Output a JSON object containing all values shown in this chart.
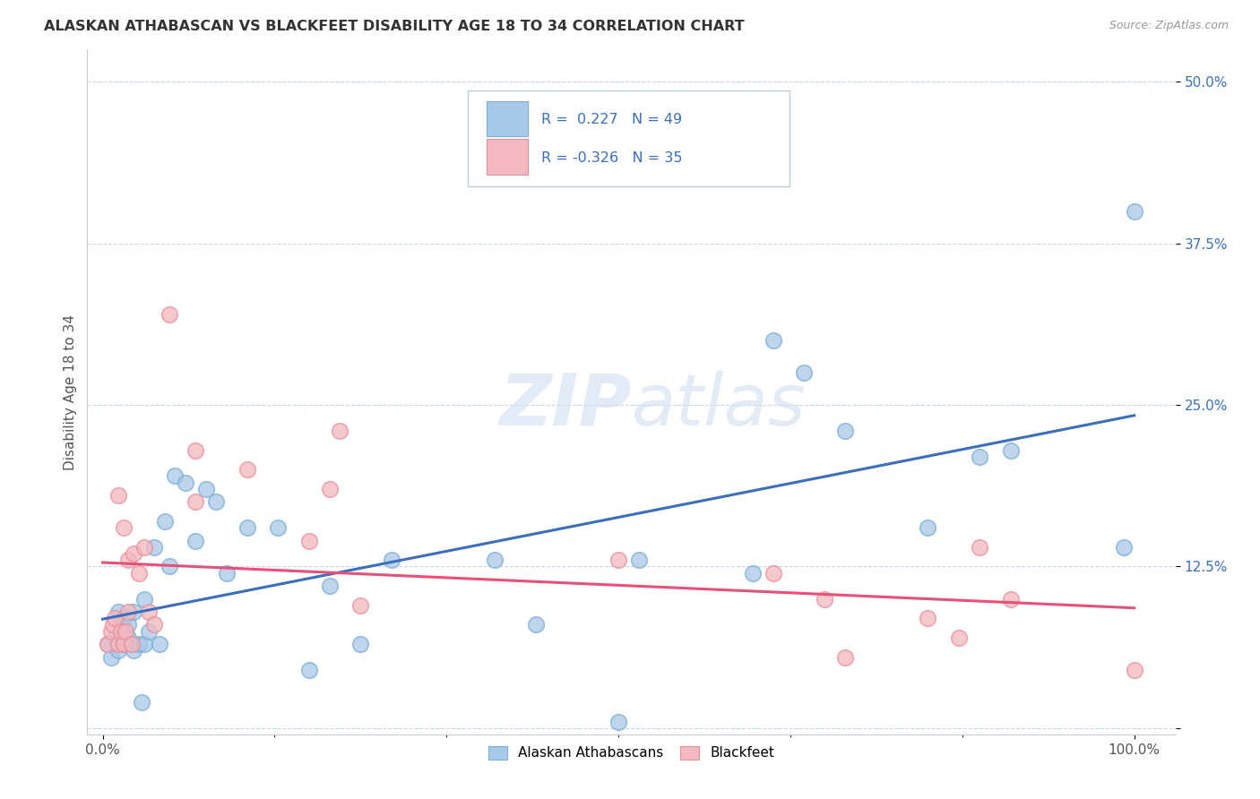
{
  "title": "ALASKAN ATHABASCAN VS BLACKFEET DISABILITY AGE 18 TO 34 CORRELATION CHART",
  "source": "Source: ZipAtlas.com",
  "ylabel": "Disability Age 18 to 34",
  "legend_label1": "Alaskan Athabascans",
  "legend_label2": "Blackfeet",
  "R1": 0.227,
  "N1": 49,
  "R2": -0.326,
  "N2": 35,
  "blue_color": "#a8c8e8",
  "blue_edge_color": "#7aafd4",
  "pink_color": "#f4b8c0",
  "pink_edge_color": "#e8909a",
  "blue_line_color": "#3a6fbe",
  "pink_line_color": "#e8507a",
  "legend_text_color": "#3a6fbe",
  "watermark_color": "#d0dff0",
  "ylabel_ticks": [
    0.0,
    0.125,
    0.25,
    0.375,
    0.5
  ],
  "ylabel_labels": [
    "",
    "12.5%",
    "25.0%",
    "37.5%",
    "50.0%"
  ],
  "blue_x": [
    0.005,
    0.008,
    0.012,
    0.015,
    0.015,
    0.018,
    0.018,
    0.02,
    0.02,
    0.022,
    0.025,
    0.025,
    0.028,
    0.03,
    0.03,
    0.035,
    0.038,
    0.04,
    0.04,
    0.045,
    0.05,
    0.055,
    0.06,
    0.065,
    0.07,
    0.08,
    0.09,
    0.1,
    0.11,
    0.12,
    0.14,
    0.17,
    0.2,
    0.22,
    0.25,
    0.28,
    0.38,
    0.42,
    0.5,
    0.52,
    0.63,
    0.65,
    0.68,
    0.72,
    0.8,
    0.85,
    0.88,
    0.99,
    1.0
  ],
  "blue_y": [
    0.065,
    0.055,
    0.07,
    0.06,
    0.09,
    0.08,
    0.07,
    0.085,
    0.065,
    0.075,
    0.08,
    0.07,
    0.065,
    0.09,
    0.06,
    0.065,
    0.02,
    0.1,
    0.065,
    0.075,
    0.14,
    0.065,
    0.16,
    0.125,
    0.195,
    0.19,
    0.145,
    0.185,
    0.175,
    0.12,
    0.155,
    0.155,
    0.045,
    0.11,
    0.065,
    0.13,
    0.13,
    0.08,
    0.005,
    0.13,
    0.12,
    0.3,
    0.275,
    0.23,
    0.155,
    0.21,
    0.215,
    0.14,
    0.4
  ],
  "pink_x": [
    0.005,
    0.008,
    0.01,
    0.012,
    0.015,
    0.015,
    0.018,
    0.02,
    0.02,
    0.022,
    0.025,
    0.025,
    0.028,
    0.03,
    0.035,
    0.04,
    0.045,
    0.05,
    0.065,
    0.09,
    0.09,
    0.14,
    0.2,
    0.22,
    0.23,
    0.25,
    0.5,
    0.65,
    0.7,
    0.72,
    0.8,
    0.83,
    0.85,
    0.88,
    1.0
  ],
  "pink_y": [
    0.065,
    0.075,
    0.08,
    0.085,
    0.065,
    0.18,
    0.075,
    0.155,
    0.065,
    0.075,
    0.13,
    0.09,
    0.065,
    0.135,
    0.12,
    0.14,
    0.09,
    0.08,
    0.32,
    0.215,
    0.175,
    0.2,
    0.145,
    0.185,
    0.23,
    0.095,
    0.13,
    0.12,
    0.1,
    0.055,
    0.085,
    0.07,
    0.14,
    0.1,
    0.045
  ]
}
